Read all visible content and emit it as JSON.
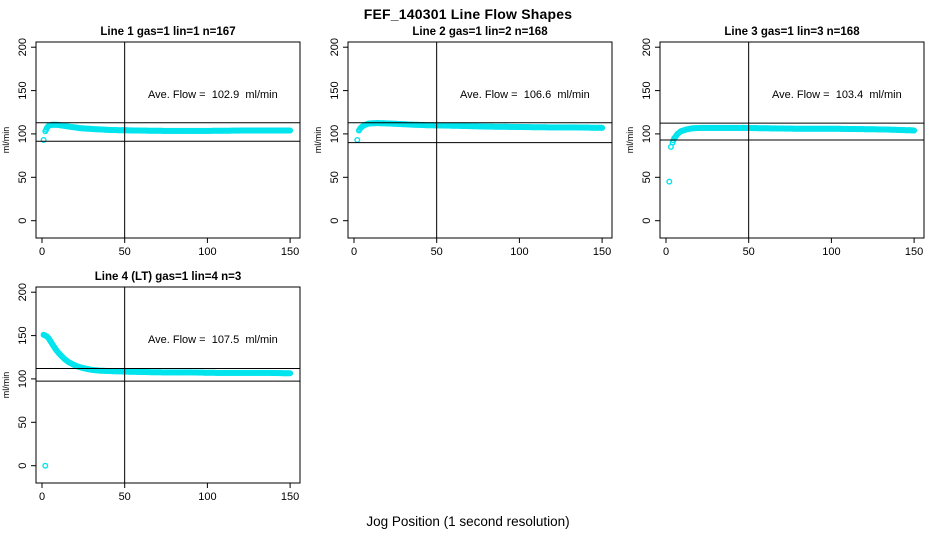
{
  "page_title": "FEF_140301  Line Flow Shapes",
  "x_axis_label": "Jog Position (1 second resolution)",
  "colors": {
    "points": "#00e4ee",
    "axis": "#000000",
    "background": "#ffffff",
    "text": "#000000"
  },
  "chart_data": [
    {
      "type": "scatter",
      "title": "Line 1 gas=1 lin=1 n=167",
      "line": "1",
      "gas": 1,
      "lin": 1,
      "n": 167,
      "annotation": "Ave. Flow =  102.9  ml/min",
      "ave_flow": 102.9,
      "ylabel": "ml/min",
      "xticks": [
        0,
        50,
        100,
        150
      ],
      "yticks": [
        0,
        50,
        100,
        150,
        200
      ],
      "xlim": [
        -3.6,
        156
      ],
      "ylim": [
        -20,
        206
      ],
      "grid": false,
      "vline_x": 50,
      "hlines": [
        113,
        91.5
      ],
      "outliers": [
        [
          1,
          93
        ]
      ],
      "curve_keypoints": [
        [
          2,
          103
        ],
        [
          3,
          107
        ],
        [
          4,
          109.5
        ],
        [
          6,
          110.5
        ],
        [
          9,
          110.5
        ],
        [
          13,
          109.5
        ],
        [
          18,
          108
        ],
        [
          24,
          106.5
        ],
        [
          32,
          105.5
        ],
        [
          42,
          104.5
        ],
        [
          55,
          104
        ],
        [
          75,
          103.5
        ],
        [
          100,
          103.5
        ],
        [
          125,
          104
        ],
        [
          150,
          104
        ]
      ],
      "x_end": 150
    },
    {
      "type": "scatter",
      "title": "Line 2 gas=1 lin=2 n=168",
      "line": "2",
      "gas": 1,
      "lin": 2,
      "n": 168,
      "annotation": "Ave. Flow =  106.6  ml/min",
      "ave_flow": 106.6,
      "ylabel": "ml/min",
      "xticks": [
        0,
        50,
        100,
        150
      ],
      "yticks": [
        0,
        50,
        100,
        150,
        200
      ],
      "xlim": [
        -3.6,
        156
      ],
      "ylim": [
        -20,
        206
      ],
      "grid": false,
      "vline_x": 50,
      "hlines": [
        113,
        90
      ],
      "outliers": [
        [
          2,
          93
        ]
      ],
      "curve_keypoints": [
        [
          3,
          104
        ],
        [
          4,
          107
        ],
        [
          6,
          110
        ],
        [
          9,
          112
        ],
        [
          14,
          112.5
        ],
        [
          22,
          112
        ],
        [
          32,
          111
        ],
        [
          45,
          110
        ],
        [
          60,
          109.5
        ],
        [
          80,
          108.5
        ],
        [
          100,
          108
        ],
        [
          120,
          107.5
        ],
        [
          135,
          107.5
        ],
        [
          150,
          107
        ]
      ],
      "x_end": 150
    },
    {
      "type": "scatter",
      "title": "Line 3 gas=1 lin=3 n=168",
      "line": "3",
      "gas": 1,
      "lin": 3,
      "n": 168,
      "annotation": "Ave. Flow =  103.4  ml/min",
      "ave_flow": 103.4,
      "ylabel": "ml/min",
      "xticks": [
        0,
        50,
        100,
        150
      ],
      "yticks": [
        0,
        50,
        100,
        150,
        200
      ],
      "xlim": [
        -3.6,
        156
      ],
      "ylim": [
        -20,
        206
      ],
      "grid": false,
      "vline_x": 50,
      "hlines": [
        112.5,
        93
      ],
      "outliers": [
        [
          2,
          45
        ],
        [
          3,
          85
        ]
      ],
      "curve_keypoints": [
        [
          4,
          90
        ],
        [
          5,
          95
        ],
        [
          7,
          100
        ],
        [
          9,
          103
        ],
        [
          12,
          105
        ],
        [
          16,
          106.5
        ],
        [
          22,
          107
        ],
        [
          30,
          107
        ],
        [
          45,
          107
        ],
        [
          60,
          106.5
        ],
        [
          80,
          106
        ],
        [
          100,
          106
        ],
        [
          120,
          105.5
        ],
        [
          135,
          105
        ],
        [
          150,
          104
        ]
      ],
      "x_end": 150
    },
    {
      "type": "scatter",
      "title": "Line 4 (LT) gas=1 lin=4 n=3",
      "line": "4 (LT)",
      "gas": 1,
      "lin": 4,
      "n": 3,
      "annotation": "Ave. Flow =  107.5  ml/min",
      "ave_flow": 107.5,
      "ylabel": "ml/min",
      "xticks": [
        0,
        50,
        100,
        150
      ],
      "yticks": [
        0,
        50,
        100,
        150,
        200
      ],
      "xlim": [
        -3.6,
        156
      ],
      "ylim": [
        -20,
        206
      ],
      "grid": false,
      "vline_x": 50,
      "hlines": [
        112,
        97.5
      ],
      "outliers": [
        [
          2,
          0
        ]
      ],
      "curve_keypoints": [
        [
          1,
          151
        ],
        [
          2,
          150
        ],
        [
          3,
          149
        ],
        [
          4,
          147
        ],
        [
          5,
          144
        ],
        [
          6,
          141
        ],
        [
          7,
          138
        ],
        [
          8,
          135
        ],
        [
          10,
          130
        ],
        [
          12,
          126
        ],
        [
          14,
          122.5
        ],
        [
          16,
          119.5
        ],
        [
          19,
          116.5
        ],
        [
          22,
          114
        ],
        [
          26,
          112
        ],
        [
          30,
          110.5
        ],
        [
          35,
          109.5
        ],
        [
          42,
          109
        ],
        [
          50,
          108.5
        ],
        [
          60,
          108
        ],
        [
          75,
          107.5
        ],
        [
          90,
          107.5
        ],
        [
          105,
          107
        ],
        [
          120,
          107
        ],
        [
          135,
          107
        ],
        [
          150,
          106.5
        ]
      ],
      "x_end": 150
    }
  ]
}
